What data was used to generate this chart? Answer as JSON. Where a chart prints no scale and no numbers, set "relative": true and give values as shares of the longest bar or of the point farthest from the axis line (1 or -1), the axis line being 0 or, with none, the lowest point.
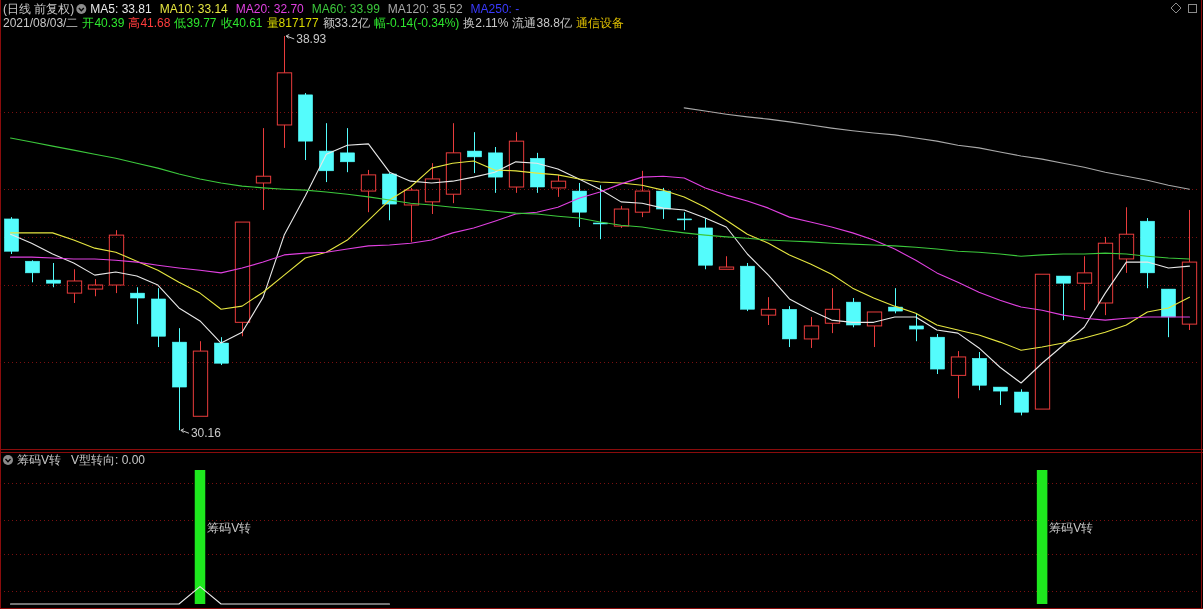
{
  "chart_data": [
    {
      "type": "candlestick",
      "title": "(日线 前复权)",
      "subtitle": "2021/08/03/二 开40.39 高41.68 低39.77 收40.61 量817177 额33.2亿 幅-0.14(-0.34%) 换2.11% 流通38.8亿 通信设备",
      "legend": "top left",
      "grid": "y",
      "categories": [
        null,
        null,
        null,
        null,
        null,
        null,
        null,
        null,
        null,
        null,
        null,
        null,
        null,
        null,
        null,
        null,
        null,
        null,
        null,
        null,
        null,
        null,
        null,
        null,
        null,
        null,
        null,
        null,
        null,
        null,
        null,
        null,
        null,
        null,
        null,
        null,
        null,
        null,
        null,
        null,
        null,
        null,
        null,
        null,
        null,
        null,
        null,
        null,
        null,
        null,
        null,
        null,
        null,
        null,
        null,
        null,
        null
      ],
      "ylim": [
        29.72,
        39.73
      ],
      "yticks": [
        {
          "value": 37.24,
          "label": null
        },
        {
          "value": 35.52,
          "label": null
        },
        {
          "value": 34.46,
          "label": null
        },
        {
          "value": 33.39,
          "label": null
        },
        {
          "value": 31.67,
          "label": null
        }
      ],
      "ohlc": [
        [
          34.86,
          34.9,
          34.08,
          34.14
        ],
        [
          33.92,
          33.94,
          33.45,
          33.66
        ],
        [
          33.5,
          33.88,
          33.34,
          33.43
        ],
        [
          33.21,
          33.74,
          32.99,
          33.48
        ],
        [
          33.3,
          33.52,
          33.14,
          33.39
        ],
        [
          33.39,
          34.61,
          33.21,
          34.5
        ],
        [
          33.21,
          33.34,
          32.52,
          33.1
        ],
        [
          33.08,
          33.32,
          32.01,
          32.25
        ],
        [
          32.12,
          32.43,
          30.16,
          31.12
        ],
        [
          30.47,
          32.14,
          30.47,
          31.92
        ],
        [
          32.1,
          32.23,
          31.61,
          31.65
        ],
        [
          32.56,
          34.79,
          32.25,
          34.79
        ],
        [
          35.66,
          36.88,
          35.06,
          35.81
        ],
        [
          36.95,
          38.93,
          36.44,
          38.11
        ],
        [
          37.62,
          37.66,
          36.17,
          36.59
        ],
        [
          36.37,
          36.99,
          35.68,
          35.93
        ],
        [
          36.33,
          36.88,
          35.9,
          36.13
        ],
        [
          35.48,
          35.95,
          35.01,
          35.84
        ],
        [
          35.86,
          35.88,
          34.83,
          35.19
        ],
        [
          35.17,
          35.55,
          34.35,
          35.5
        ],
        [
          35.24,
          36.1,
          34.97,
          35.75
        ],
        [
          35.41,
          36.99,
          35.21,
          36.33
        ],
        [
          36.37,
          36.79,
          35.88,
          36.24
        ],
        [
          36.33,
          36.46,
          35.44,
          35.79
        ],
        [
          35.57,
          36.79,
          35.44,
          36.59
        ],
        [
          36.21,
          36.33,
          35.44,
          35.57
        ],
        [
          35.55,
          35.84,
          35.35,
          35.7
        ],
        [
          35.48,
          35.66,
          34.68,
          35.01
        ],
        [
          34.77,
          35.61,
          34.41,
          34.77
        ],
        [
          34.7,
          35.15,
          34.66,
          35.08
        ],
        [
          35.01,
          35.93,
          34.9,
          35.48
        ],
        [
          35.48,
          35.55,
          34.86,
          35.08
        ],
        [
          34.86,
          35.01,
          34.61,
          34.86
        ],
        [
          34.66,
          34.88,
          33.74,
          33.83
        ],
        [
          33.74,
          34.03,
          33.74,
          33.79
        ],
        [
          33.81,
          33.88,
          32.81,
          32.85
        ],
        [
          32.72,
          33.12,
          32.5,
          32.85
        ],
        [
          32.85,
          32.92,
          32.01,
          32.19
        ],
        [
          32.19,
          32.68,
          31.99,
          32.48
        ],
        [
          32.54,
          33.32,
          32.32,
          32.85
        ],
        [
          33.01,
          33.1,
          32.45,
          32.5
        ],
        [
          32.48,
          32.79,
          32.01,
          32.79
        ],
        [
          32.9,
          33.32,
          32.76,
          32.81
        ],
        [
          32.48,
          32.76,
          32.14,
          32.41
        ],
        [
          32.23,
          32.3,
          31.41,
          31.52
        ],
        [
          31.38,
          31.92,
          30.87,
          31.79
        ],
        [
          31.76,
          31.9,
          31.05,
          31.16
        ],
        [
          31.12,
          31.12,
          30.72,
          31.03
        ],
        [
          31.01,
          31.07,
          30.49,
          30.56
        ],
        [
          30.63,
          33.63,
          30.63,
          33.63
        ],
        [
          33.59,
          33.59,
          32.61,
          33.43
        ],
        [
          33.43,
          34.03,
          32.83,
          33.66
        ],
        [
          32.99,
          34.46,
          32.72,
          34.32
        ],
        [
          33.97,
          35.12,
          33.66,
          34.52
        ],
        [
          34.81,
          34.88,
          33.32,
          33.66
        ],
        [
          33.3,
          33.3,
          32.23,
          32.68
        ],
        [
          32.52,
          35.06,
          32.39,
          33.9
        ]
      ],
      "colors": [
        "#54fcfc",
        "#54fcfc",
        "#54fcfc",
        "#e83c3c",
        "#e83c3c",
        "#e83c3c",
        "#54fcfc",
        "#54fcfc",
        "#54fcfc",
        "#e83c3c",
        "#54fcfc",
        "#e83c3c",
        "#e83c3c",
        "#e83c3c",
        "#54fcfc",
        "#54fcfc",
        "#54fcfc",
        "#e83c3c",
        "#54fcfc",
        "#e83c3c",
        "#e83c3c",
        "#e83c3c",
        "#54fcfc",
        "#54fcfc",
        "#e83c3c",
        "#54fcfc",
        "#e83c3c",
        "#54fcfc",
        "#54fcfc",
        "#e83c3c",
        "#e83c3c",
        "#54fcfc",
        "#54fcfc",
        "#54fcfc",
        "#e83c3c",
        "#54fcfc",
        "#e83c3c",
        "#54fcfc",
        "#e83c3c",
        "#e83c3c",
        "#54fcfc",
        "#e83c3c",
        "#54fcfc",
        "#54fcfc",
        "#54fcfc",
        "#e83c3c",
        "#54fcfc",
        "#54fcfc",
        "#54fcfc",
        "#e83c3c",
        "#54fcfc",
        "#e83c3c",
        "#e83c3c",
        "#e83c3c",
        "#54fcfc",
        "#54fcfc",
        "#e83c3c"
      ],
      "series": [
        {
          "name": "MA5: 33.81",
          "type": "line",
          "color": "#e8e8e8",
          "values": [
            34.52,
            34.32,
            34.08,
            33.88,
            33.61,
            33.68,
            33.59,
            33.39,
            32.88,
            32.59,
            32.1,
            32.34,
            33.12,
            34.5,
            35.37,
            36.3,
            36.5,
            36.53,
            35.9,
            35.7,
            35.66,
            35.7,
            35.79,
            35.9,
            36.13,
            36.1,
            35.97,
            35.75,
            35.52,
            35.24,
            35.21,
            35.1,
            35.06,
            34.88,
            34.68,
            34.08,
            33.61,
            33.08,
            32.83,
            32.61,
            32.56,
            32.56,
            32.68,
            32.68,
            32.39,
            32.32,
            31.99,
            31.56,
            31.21,
            31.65,
            32.05,
            32.45,
            33.21,
            33.9,
            33.9,
            33.77,
            33.81
          ]
        },
        {
          "name": "MA10: 33.14",
          "type": "line",
          "color": "#e6e640",
          "values": [
            34.55,
            34.55,
            34.55,
            34.39,
            34.21,
            34.12,
            33.92,
            33.72,
            33.45,
            33.21,
            32.85,
            32.92,
            33.23,
            33.61,
            33.99,
            34.12,
            34.39,
            34.83,
            35.28,
            35.57,
            35.99,
            36.1,
            36.15,
            35.95,
            35.93,
            35.88,
            35.84,
            35.75,
            35.68,
            35.66,
            35.61,
            35.5,
            35.35,
            35.12,
            34.83,
            34.52,
            34.32,
            34.06,
            33.86,
            33.63,
            33.32,
            33.1,
            32.92,
            32.76,
            32.5,
            32.39,
            32.28,
            32.12,
            31.94,
            32.01,
            32.1,
            32.21,
            32.34,
            32.5,
            32.79,
            32.88,
            33.12
          ]
        },
        {
          "name": "MA20: 32.70",
          "type": "line",
          "color": "#e040e0",
          "values": [
            34.01,
            34.01,
            33.99,
            33.97,
            33.97,
            33.94,
            33.9,
            33.83,
            33.77,
            33.72,
            33.66,
            33.77,
            33.9,
            34.06,
            34.1,
            34.12,
            34.19,
            34.26,
            34.28,
            34.32,
            34.39,
            34.55,
            34.66,
            34.81,
            34.97,
            35.01,
            35.12,
            35.32,
            35.46,
            35.64,
            35.79,
            35.81,
            35.77,
            35.55,
            35.39,
            35.26,
            35.1,
            34.9,
            34.79,
            34.68,
            34.55,
            34.39,
            34.19,
            33.94,
            33.66,
            33.45,
            33.23,
            33.05,
            32.9,
            32.83,
            32.72,
            32.65,
            32.61,
            32.65,
            32.68,
            32.68,
            32.68
          ]
        },
        {
          "name": "MA60: 33.99",
          "type": "line",
          "color": "#3cc83c",
          "values": [
            36.66,
            36.57,
            36.48,
            36.39,
            36.3,
            36.21,
            36.1,
            35.99,
            35.86,
            35.75,
            35.66,
            35.59,
            35.55,
            35.52,
            35.5,
            35.46,
            35.41,
            35.35,
            35.28,
            35.21,
            35.17,
            35.12,
            35.08,
            35.03,
            34.99,
            34.97,
            34.92,
            34.88,
            34.79,
            34.72,
            34.68,
            34.61,
            34.55,
            34.5,
            34.46,
            34.43,
            34.39,
            34.37,
            34.35,
            34.32,
            34.3,
            34.28,
            34.26,
            34.23,
            34.19,
            34.14,
            34.12,
            34.08,
            34.03,
            34.06,
            34.08,
            34.08,
            34.1,
            34.08,
            34.03,
            33.99,
            33.97
          ]
        },
        {
          "name": "MA120: 35.52",
          "type": "line",
          "color": "#a8a8a8",
          "values": [
            null,
            null,
            null,
            null,
            null,
            null,
            null,
            null,
            null,
            null,
            null,
            null,
            null,
            null,
            null,
            null,
            null,
            null,
            null,
            null,
            null,
            null,
            null,
            null,
            null,
            null,
            null,
            null,
            null,
            null,
            null,
            null,
            37.33,
            37.26,
            37.19,
            37.13,
            37.08,
            37.02,
            36.95,
            36.88,
            36.82,
            36.77,
            36.73,
            36.66,
            36.59,
            36.5,
            36.44,
            36.35,
            36.26,
            36.19,
            36.1,
            36.01,
            35.9,
            35.81,
            35.72,
            35.61,
            35.52
          ]
        },
        {
          "name": "MA250: -",
          "type": "line",
          "color": "#3a3aff",
          "values": [
            null,
            null,
            null,
            null,
            null,
            null,
            null,
            null,
            null,
            null,
            null,
            null,
            null,
            null,
            null,
            null,
            null,
            null,
            null,
            null,
            null,
            null,
            null,
            null,
            null,
            null,
            null,
            null,
            null,
            null,
            null,
            null,
            null,
            null,
            null,
            null,
            null,
            null,
            null,
            null,
            null,
            null,
            null,
            null,
            null,
            null,
            null,
            null,
            null,
            null,
            null,
            null,
            null,
            null,
            null,
            null,
            null
          ]
        }
      ],
      "annotations": [
        "38.93",
        "30.16"
      ]
    },
    {
      "type": "bar",
      "title": "筹码V转",
      "subtitle": "V型转向: 0.00",
      "relative": true,
      "categories": [
        null,
        null,
        null,
        null,
        null,
        null,
        null,
        null,
        null,
        null,
        null,
        null,
        null,
        null,
        null,
        null,
        null,
        null,
        null,
        null,
        null,
        null,
        null,
        null,
        null,
        null,
        null,
        null,
        null,
        null,
        null,
        null,
        null,
        null,
        null,
        null,
        null,
        null,
        null,
        null,
        null,
        null,
        null,
        null,
        null,
        null,
        null,
        null,
        null,
        null,
        null,
        null,
        null,
        null,
        null,
        null,
        null
      ],
      "ref_lines": [
        {
          "axis": "y",
          "value": 0.9,
          "color": "#7a1010",
          "line_style": "dotted"
        },
        {
          "axis": "y",
          "value": 0.63,
          "color": "#7a1010",
          "line_style": "dotted"
        },
        {
          "axis": "y",
          "value": 0.37,
          "color": "#7a1010",
          "line_style": "dotted"
        },
        {
          "axis": "y",
          "value": 0.1,
          "color": "#7a1010",
          "line_style": "dotted"
        }
      ],
      "series": [
        {
          "color": "#1ee81e",
          "values": [
            0,
            0,
            0,
            0,
            0,
            0,
            0,
            0,
            0,
            1,
            0,
            0,
            0,
            0,
            0,
            0,
            0,
            0,
            0,
            0,
            0,
            0,
            0,
            0,
            0,
            0,
            0,
            0,
            0,
            0,
            0,
            0,
            0,
            0,
            0,
            0,
            0,
            0,
            0,
            0,
            0,
            0,
            0,
            0,
            0,
            0,
            0,
            0,
            0,
            1,
            0,
            0,
            0,
            0,
            0,
            0,
            0
          ]
        },
        {
          "type": "line",
          "color": "#e8e8e8",
          "values": [
            0,
            0,
            0,
            0,
            0,
            0,
            0,
            0,
            0,
            0.13,
            0,
            0,
            0,
            0,
            0,
            0,
            0,
            0,
            0,
            null,
            null,
            null,
            null,
            null,
            null,
            null,
            null,
            null,
            null,
            null,
            null,
            null,
            null,
            null,
            null,
            null,
            null,
            null,
            null,
            null,
            null,
            null,
            null,
            null,
            null,
            null,
            null,
            null,
            null,
            null,
            null,
            null,
            null,
            null,
            null,
            null,
            null
          ]
        }
      ],
      "annotations": [
        "筹码V转",
        "筹码V转"
      ]
    }
  ]
}
